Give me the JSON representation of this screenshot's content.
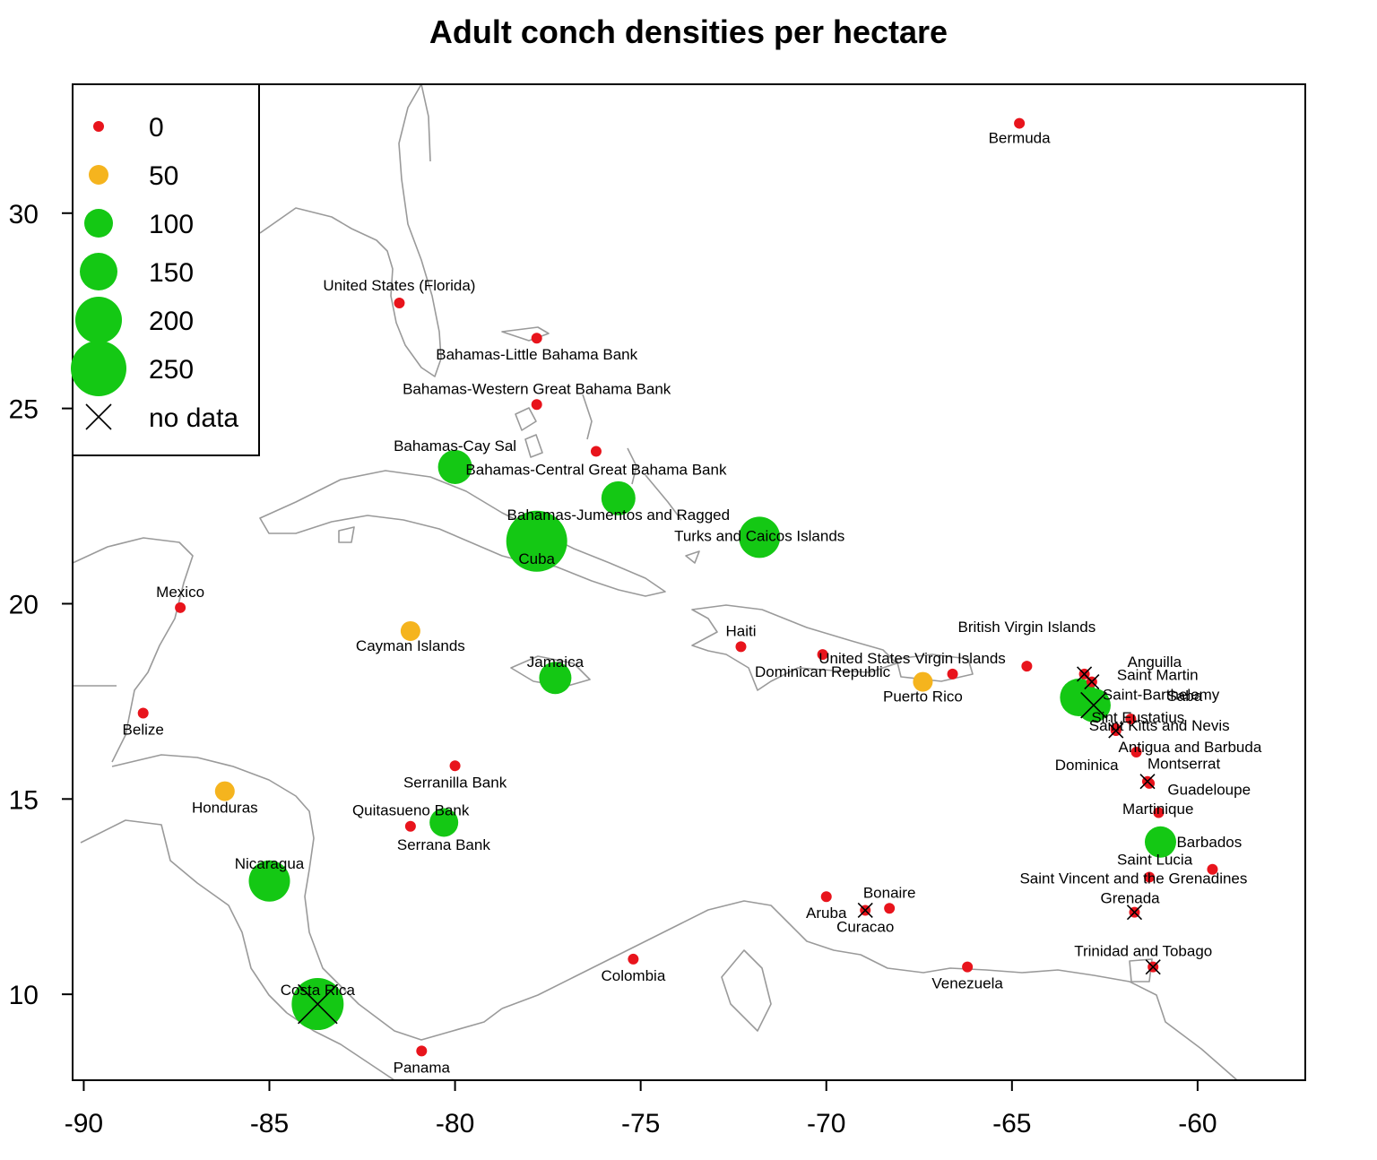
{
  "chart_data": {
    "type": "scatter",
    "title": "Adult conch densities per hectare",
    "xlabel": "",
    "ylabel": "",
    "xlim": [
      -90.3,
      -57.1
    ],
    "ylim": [
      7.8,
      33.3
    ],
    "x_ticks": [
      -90,
      -85,
      -80,
      -75,
      -70,
      -65,
      -60
    ],
    "y_ticks": [
      10,
      15,
      20,
      25,
      30
    ],
    "colors": {
      "zero": "#e8141c",
      "fifty": "#f5b41e",
      "high": "#14c814",
      "cross": "#000000",
      "coast": "#9a9a9a"
    },
    "legend": {
      "placement": "top-left",
      "entries": [
        {
          "label": "0",
          "value": 0
        },
        {
          "label": "50",
          "value": 50
        },
        {
          "label": "100",
          "value": 100
        },
        {
          "label": "150",
          "value": 150
        },
        {
          "label": "200",
          "value": 200
        },
        {
          "label": "250",
          "value": 250
        },
        {
          "label": "no data",
          "value": null
        }
      ]
    },
    "points": [
      {
        "name": "Bermuda",
        "x": -64.8,
        "y": 32.3,
        "density": 0,
        "nodata": false
      },
      {
        "name": "United States (Florida)",
        "x": -81.5,
        "y": 27.7,
        "density": 0,
        "nodata": false
      },
      {
        "name": "Bahamas-Little Bahama Bank",
        "x": -77.8,
        "y": 26.8,
        "density": 0,
        "nodata": false
      },
      {
        "name": "Bahamas-Western Great Bahama Bank",
        "x": -77.8,
        "y": 25.1,
        "density": 0,
        "nodata": false
      },
      {
        "name": "Bahamas-Cay Sal",
        "x": -80.0,
        "y": 23.5,
        "density": 130,
        "nodata": false
      },
      {
        "name": "Bahamas-Central Great Bahama Bank",
        "x": -76.2,
        "y": 23.9,
        "density": 0,
        "nodata": false
      },
      {
        "name": "Bahamas-Jumentos and Ragged",
        "x": -75.6,
        "y": 22.7,
        "density": 130,
        "nodata": false
      },
      {
        "name": "Cuba",
        "x": -77.8,
        "y": 21.6,
        "density": 280,
        "nodata": false
      },
      {
        "name": "Turks and Caicos Islands",
        "x": -71.8,
        "y": 21.7,
        "density": 170,
        "nodata": false
      },
      {
        "name": "Mexico",
        "x": -87.4,
        "y": 19.9,
        "density": 0,
        "nodata": false
      },
      {
        "name": "Cayman Islands",
        "x": -81.2,
        "y": 19.3,
        "density": 50,
        "nodata": false
      },
      {
        "name": "Jamaica",
        "x": -77.3,
        "y": 18.1,
        "density": 120,
        "nodata": false
      },
      {
        "name": "Haiti",
        "x": -72.3,
        "y": 18.9,
        "density": 0,
        "nodata": false
      },
      {
        "name": "Dominican Republic",
        "x": -70.1,
        "y": 18.7,
        "density": 0,
        "nodata": false
      },
      {
        "name": "Puerto Rico",
        "x": -67.4,
        "y": 18.0,
        "density": 50,
        "nodata": false
      },
      {
        "name": "United States Virgin Islands",
        "x": -66.6,
        "y": 18.2,
        "density": 0,
        "nodata": false
      },
      {
        "name": "British Virgin Islands",
        "x": -64.6,
        "y": 18.4,
        "density": 0,
        "nodata": false
      },
      {
        "name": "Anguilla",
        "x": -63.05,
        "y": 18.2,
        "density": 0,
        "nodata": true
      },
      {
        "name": "Saint Martin",
        "x": -62.85,
        "y": 18.0,
        "density": 0,
        "nodata": true
      },
      {
        "name": "Saint-Barthelemy",
        "x": -62.8,
        "y": 17.4,
        "density": 130,
        "nodata": true
      },
      {
        "name": "Saba",
        "x": -63.2,
        "y": 17.6,
        "density": 150,
        "nodata": false
      },
      {
        "name": "Sint Eustatius",
        "x": -61.8,
        "y": 17.05,
        "density": 0,
        "nodata": false
      },
      {
        "name": "Saint Kitts and Nevis",
        "x": -62.2,
        "y": 16.75,
        "density": 0,
        "nodata": true
      },
      {
        "name": "Antigua and Barbuda",
        "x": -61.65,
        "y": 16.2,
        "density": 0,
        "nodata": false
      },
      {
        "name": "Montserrat",
        "x": -61.35,
        "y": 15.45,
        "density": 0,
        "nodata": true
      },
      {
        "name": "Guadeloupe",
        "x": -61.05,
        "y": 14.65,
        "density": 0,
        "nodata": false
      },
      {
        "name": "Barbados",
        "x": -61.0,
        "y": 13.9,
        "density": 115,
        "nodata": false
      },
      {
        "name": "Saint Lucia",
        "x": -61.3,
        "y": 13.0,
        "density": 0,
        "nodata": false
      },
      {
        "name": "Saint Vincent and the Grenadines",
        "x": -59.6,
        "y": 13.2,
        "density": 0,
        "nodata": false
      },
      {
        "name": "Grenada",
        "x": -61.7,
        "y": 12.1,
        "density": 0,
        "nodata": true
      },
      {
        "name": "Trinidad and Tobago",
        "x": -61.2,
        "y": 10.7,
        "density": 0,
        "nodata": true
      },
      {
        "name": "Dominica",
        "x": -62.2,
        "y": 16.8,
        "density": 0,
        "nodata": false
      },
      {
        "name": "Martinique",
        "x": -61.3,
        "y": 15.4,
        "density": 0,
        "nodata": false
      },
      {
        "name": "Belize",
        "x": -88.4,
        "y": 17.2,
        "density": 0,
        "nodata": false
      },
      {
        "name": "Honduras",
        "x": -86.2,
        "y": 15.2,
        "density": 50,
        "nodata": false
      },
      {
        "name": "Serranilla Bank",
        "x": -80.0,
        "y": 15.85,
        "density": 0,
        "nodata": false
      },
      {
        "name": "Quitasueno Bank",
        "x": -80.3,
        "y": 14.4,
        "density": 100,
        "nodata": false
      },
      {
        "name": "Serrana Bank",
        "x": -81.2,
        "y": 14.3,
        "density": 0,
        "nodata": false
      },
      {
        "name": "Nicaragua",
        "x": -85.0,
        "y": 12.9,
        "density": 170,
        "nodata": false
      },
      {
        "name": "Costa Rica",
        "x": -83.7,
        "y": 9.75,
        "density": 230,
        "nodata": true
      },
      {
        "name": "Panama",
        "x": -80.9,
        "y": 8.55,
        "density": 0,
        "nodata": false
      },
      {
        "name": "Colombia",
        "x": -75.2,
        "y": 10.9,
        "density": 0,
        "nodata": false
      },
      {
        "name": "Aruba",
        "x": -70.0,
        "y": 12.5,
        "density": 0,
        "nodata": false
      },
      {
        "name": "Curacao",
        "x": -68.95,
        "y": 12.15,
        "density": 0,
        "nodata": true
      },
      {
        "name": "Bonaire",
        "x": -68.3,
        "y": 12.2,
        "density": 0,
        "nodata": false
      },
      {
        "name": "Venezuela",
        "x": -66.2,
        "y": 10.7,
        "density": 0,
        "nodata": false
      }
    ]
  }
}
